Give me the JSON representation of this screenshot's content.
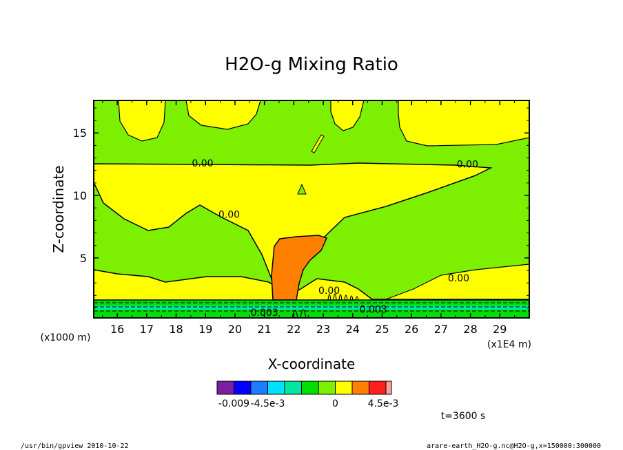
{
  "chart_data": {
    "type": "heatmap",
    "title": "H2O-g Mixing Ratio",
    "xlabel": "X-coordinate",
    "ylabel": "Z-coordinate",
    "x_unit_left": "(x1000 m)",
    "x_unit_right": "(x1E4 m)",
    "x_ticks": [
      16,
      17,
      18,
      19,
      20,
      21,
      22,
      23,
      24,
      25,
      26,
      27,
      28,
      29
    ],
    "y_ticks": [
      5,
      10,
      15
    ],
    "xlim": [
      15.2,
      30
    ],
    "ylim": [
      0.2,
      17.6
    ],
    "contour_labels": [
      {
        "text": "0.00",
        "x": 18.9,
        "y": 12.6
      },
      {
        "text": "0.00",
        "x": 27.9,
        "y": 12.5
      },
      {
        "text": "0.00",
        "x": 19.8,
        "y": 8.5
      },
      {
        "text": "0.00",
        "x": 23.2,
        "y": 2.4
      },
      {
        "text": "0.00",
        "x": 27.6,
        "y": 3.4
      },
      {
        "text": "0.003",
        "x": 21.0,
        "y": 0.65
      },
      {
        "text": "0.003",
        "x": 24.7,
        "y": 0.9
      }
    ],
    "colorbar": {
      "colors": [
        "#7a1fa0",
        "#0000ff",
        "#1e7cff",
        "#00e0ff",
        "#00e8a0",
        "#00e000",
        "#7cf000",
        "#ffff00",
        "#ff8000",
        "#ff2020",
        "#ffa0a0"
      ],
      "tick_labels": [
        "-0.009",
        "-4.5e-3",
        "0",
        "4.5e-3"
      ]
    },
    "time_label": "t=3600 s"
  },
  "footer": {
    "left": "/usr/bin/gpview  2010-10-22",
    "right": "arare-earth_H2O-g.nc@H2O-g,x=150000:300000"
  }
}
